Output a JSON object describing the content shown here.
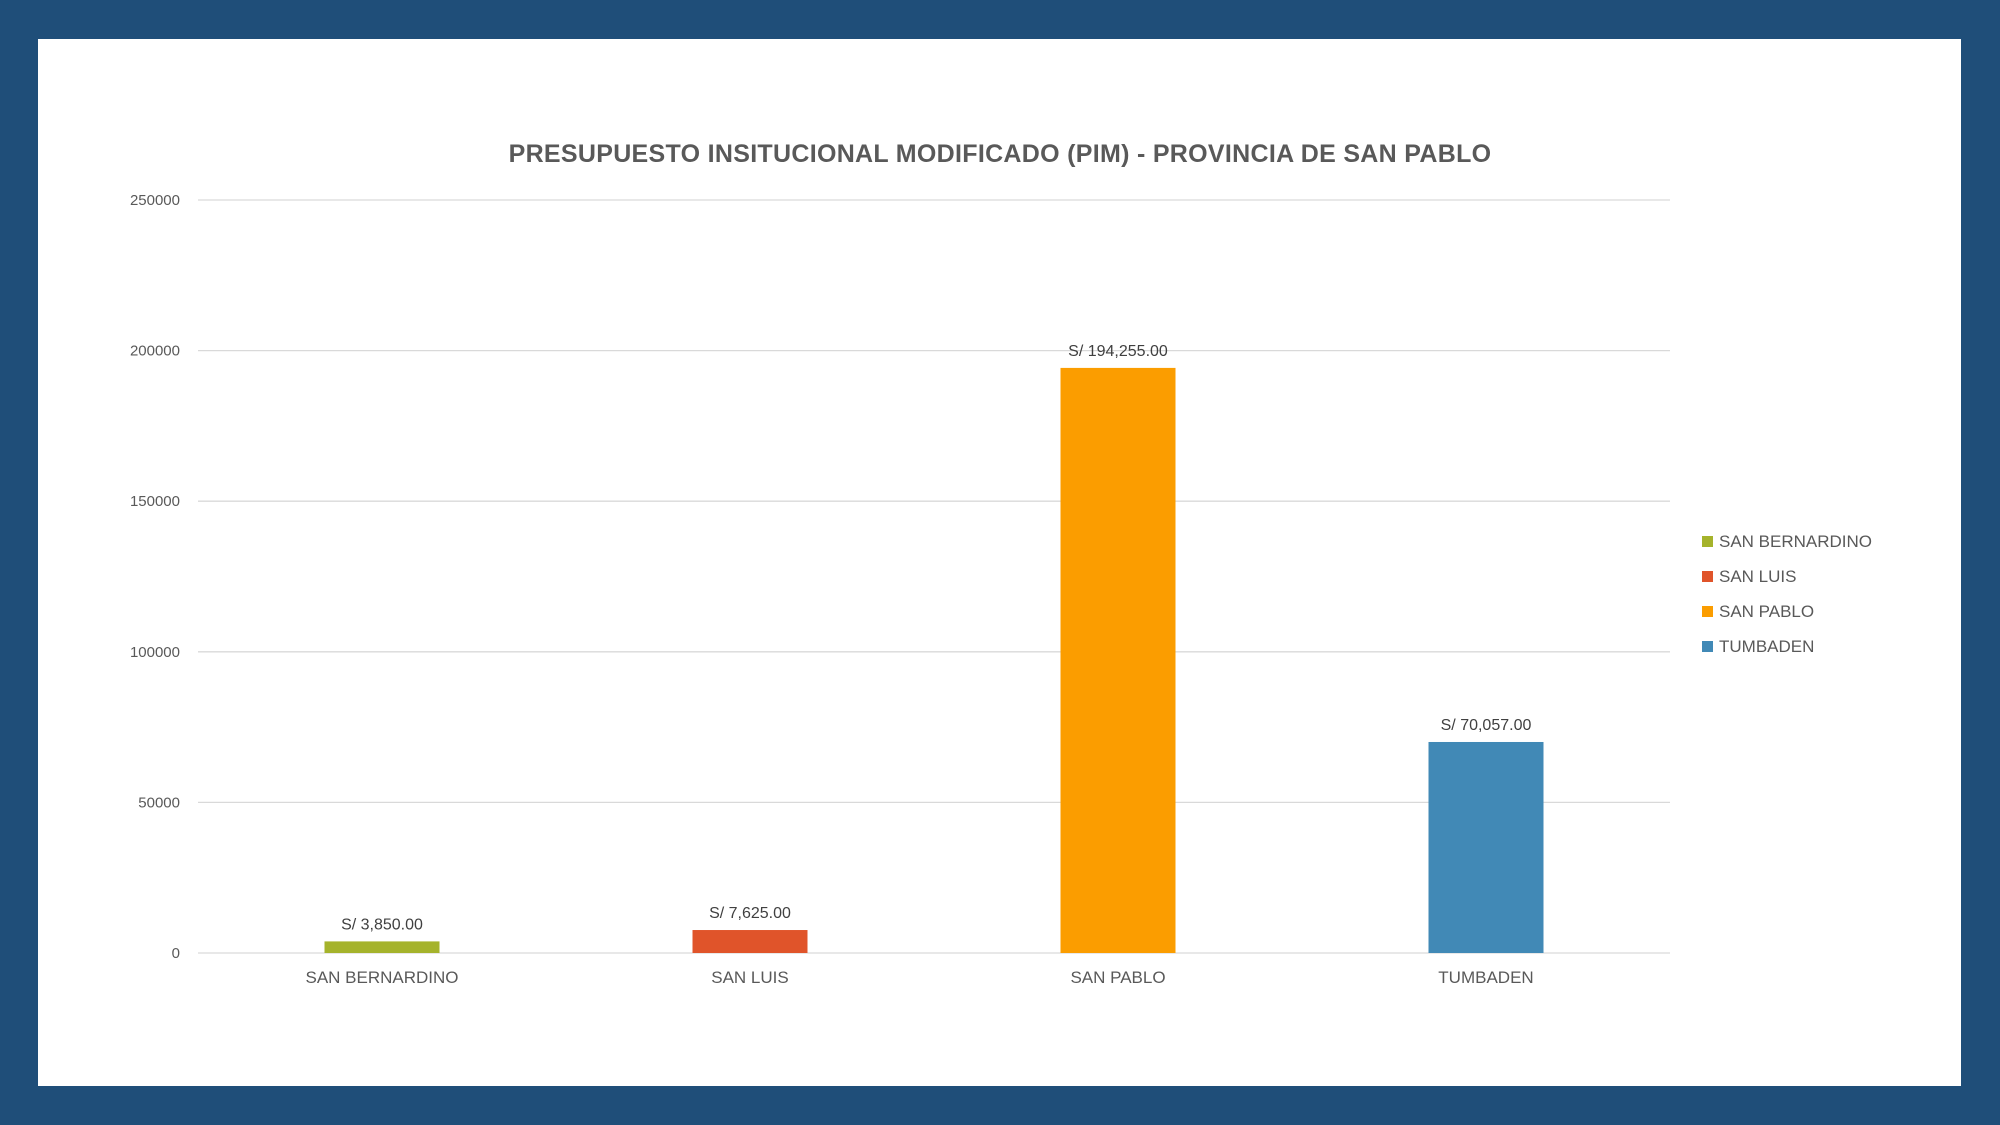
{
  "chart_data": {
    "type": "bar",
    "title": "PRESUPUESTO INSITUCIONAL MODIFICADO (PIM) - PROVINCIA DE SAN PABLO",
    "xlabel": "",
    "ylabel": "",
    "ylim": [
      0,
      250000
    ],
    "yticks": [
      "0",
      "50000",
      "100000",
      "150000",
      "200000",
      "250000"
    ],
    "categories": [
      "SAN BERNARDINO",
      "SAN LUIS",
      "SAN PABLO",
      "TUMBADEN"
    ],
    "values": [
      3850,
      7625,
      194255,
      70057
    ],
    "data_labels": [
      "S/ 3,850.00",
      "S/ 7,625.00",
      "S/ 194,255.00",
      "S/ 70,057.00"
    ],
    "colors": [
      "#a5b32b",
      "#e0542a",
      "#fb9d00",
      "#4189b6"
    ],
    "grid": true,
    "legend_position": "right",
    "legend": [
      {
        "label": "SAN BERNARDINO",
        "color": "#a5b32b"
      },
      {
        "label": "SAN LUIS",
        "color": "#e0542a"
      },
      {
        "label": "SAN PABLO",
        "color": "#fb9d00"
      },
      {
        "label": "TUMBADEN",
        "color": "#4189b6"
      }
    ]
  }
}
